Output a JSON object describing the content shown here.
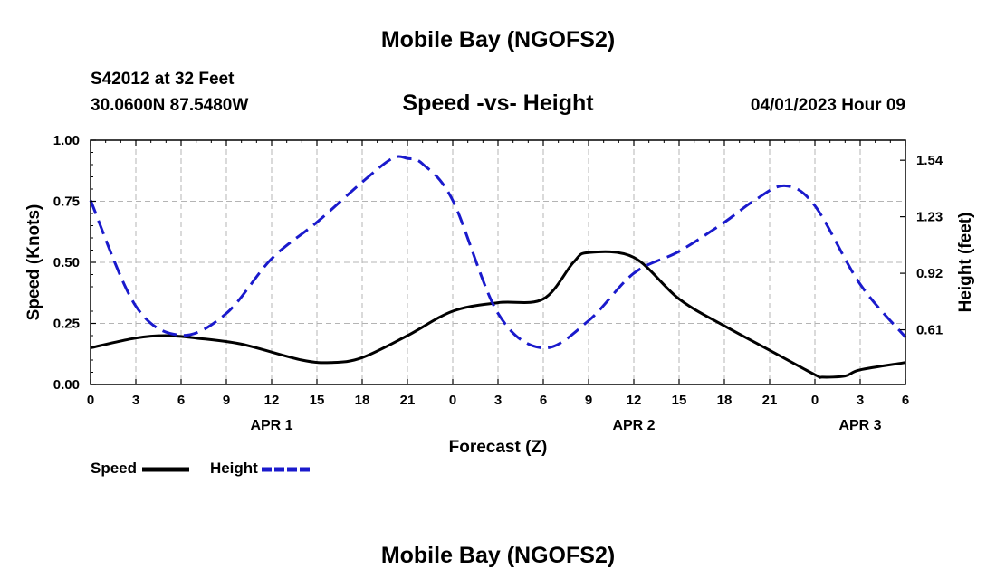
{
  "page": {
    "title_top": "Mobile Bay (NGOFS2)",
    "title_bottom": "Mobile Bay (NGOFS2)",
    "station": "S42012 at 32 Feet",
    "coords": "30.0600N  87.5480W",
    "datetime": "04/01/2023 Hour 09"
  },
  "colors": {
    "speed": "#000000",
    "height": "#1a1acc",
    "grid": "#b4b4b4"
  },
  "chart_data": {
    "type": "line",
    "title": "Speed -vs- Height",
    "xlabel": "Forecast (Z)",
    "ylabel_left": "Speed (Knots)",
    "ylabel_right": "Height (feet)",
    "x_unit": "hour",
    "xlim": [
      0,
      54
    ],
    "ylim_left": [
      0,
      1.0
    ],
    "ylim_right": [
      0.31,
      1.65
    ],
    "y_ticks_left": [
      "0.00",
      "0.25",
      "0.50",
      "0.75",
      "1.00"
    ],
    "y_ticks_right": [
      "0.61",
      "0.92",
      "1.23",
      "1.54"
    ],
    "x_ticks": [
      0,
      3,
      6,
      9,
      12,
      15,
      18,
      21,
      24,
      27,
      30,
      33,
      36,
      39,
      42,
      45,
      48,
      51,
      54
    ],
    "x_tick_labels": [
      "0",
      "3",
      "6",
      "9",
      "12",
      "15",
      "18",
      "21",
      "0",
      "3",
      "6",
      "9",
      "12",
      "15",
      "18",
      "21",
      "0",
      "3",
      "6"
    ],
    "day_labels": [
      {
        "x": 12,
        "label": "APR 1"
      },
      {
        "x": 36,
        "label": "APR 2"
      },
      {
        "x": 51,
        "label": "APR 3"
      }
    ],
    "grid": true,
    "series": [
      {
        "name": "Speed",
        "axis": "left",
        "style": "solid",
        "x": [
          0,
          3,
          5,
          7,
          10,
          14,
          16,
          18,
          21,
          24,
          27,
          30,
          32,
          33,
          36,
          39,
          42,
          45,
          48,
          48.5,
          50,
          51,
          54
        ],
        "y": [
          0.15,
          0.19,
          0.2,
          0.19,
          0.165,
          0.1,
          0.09,
          0.11,
          0.2,
          0.3,
          0.335,
          0.35,
          0.5,
          0.54,
          0.52,
          0.35,
          0.24,
          0.14,
          0.04,
          0.03,
          0.035,
          0.06,
          0.09
        ]
      },
      {
        "name": "Height",
        "axis": "right",
        "style": "dashed",
        "x": [
          0,
          3,
          6,
          9,
          12,
          15,
          18,
          20,
          21,
          22,
          24,
          27,
          30,
          33,
          36,
          39,
          42,
          44,
          46,
          48,
          51,
          54
        ],
        "y": [
          1.32,
          0.74,
          0.58,
          0.7,
          1.0,
          1.2,
          1.42,
          1.55,
          1.55,
          1.52,
          1.32,
          0.7,
          0.51,
          0.66,
          0.92,
          1.04,
          1.2,
          1.32,
          1.4,
          1.29,
          0.86,
          0.57
        ]
      }
    ]
  }
}
